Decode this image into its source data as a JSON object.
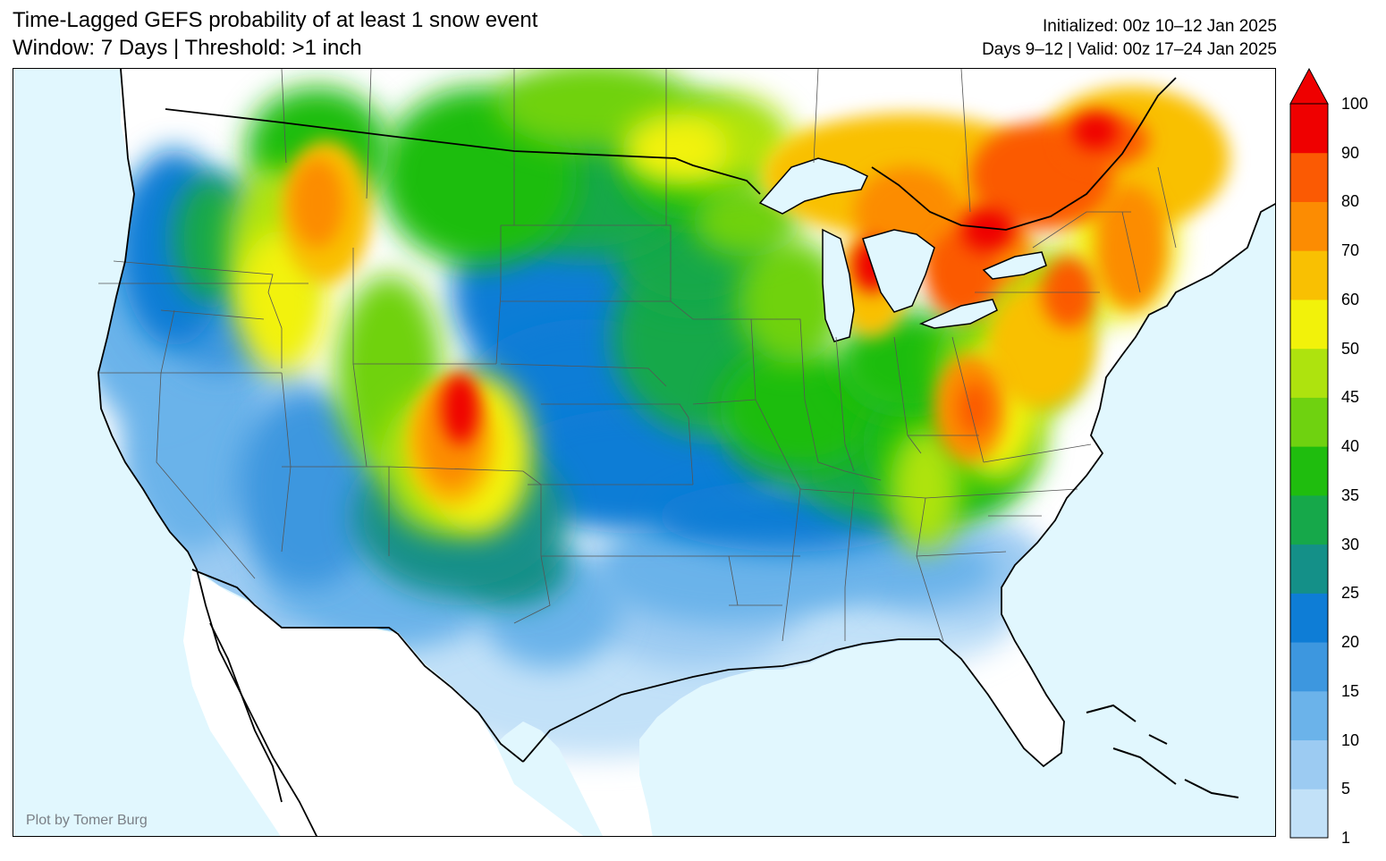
{
  "header": {
    "title_line1": "Time-Lagged GEFS probability of at least 1 snow event",
    "title_line2": "Window: 7 Days | Threshold: >1 inch",
    "init_text": "Initialized: 00z 10–12 Jan 2025",
    "valid_text": "Days 9–12 | Valid: 00z 17–24 Jan 2025"
  },
  "map": {
    "credit": "Plot by Tomer Burg",
    "ocean_color": "#e1f7fe",
    "land_color": "#ffffff",
    "border_color": "#000000",
    "state_line_color": "#555555"
  },
  "colorbar": {
    "levels": [
      1,
      5,
      10,
      15,
      20,
      25,
      30,
      35,
      40,
      45,
      50,
      60,
      70,
      80,
      90,
      100
    ],
    "labels": [
      "100",
      "90",
      "80",
      "70",
      "60",
      "50",
      "45",
      "40",
      "35",
      "30",
      "25",
      "20",
      "15",
      "10",
      "5",
      "1"
    ],
    "colors": [
      "#c2e1f8",
      "#9ccbf2",
      "#6bb3ea",
      "#3d97df",
      "#0e7dd6",
      "#149088",
      "#16a84a",
      "#1fbd0e",
      "#6fd210",
      "#aee30e",
      "#f2f20a",
      "#f9c002",
      "#fc8c02",
      "#fb5a03",
      "#ef0000"
    ],
    "extend": "max"
  }
}
